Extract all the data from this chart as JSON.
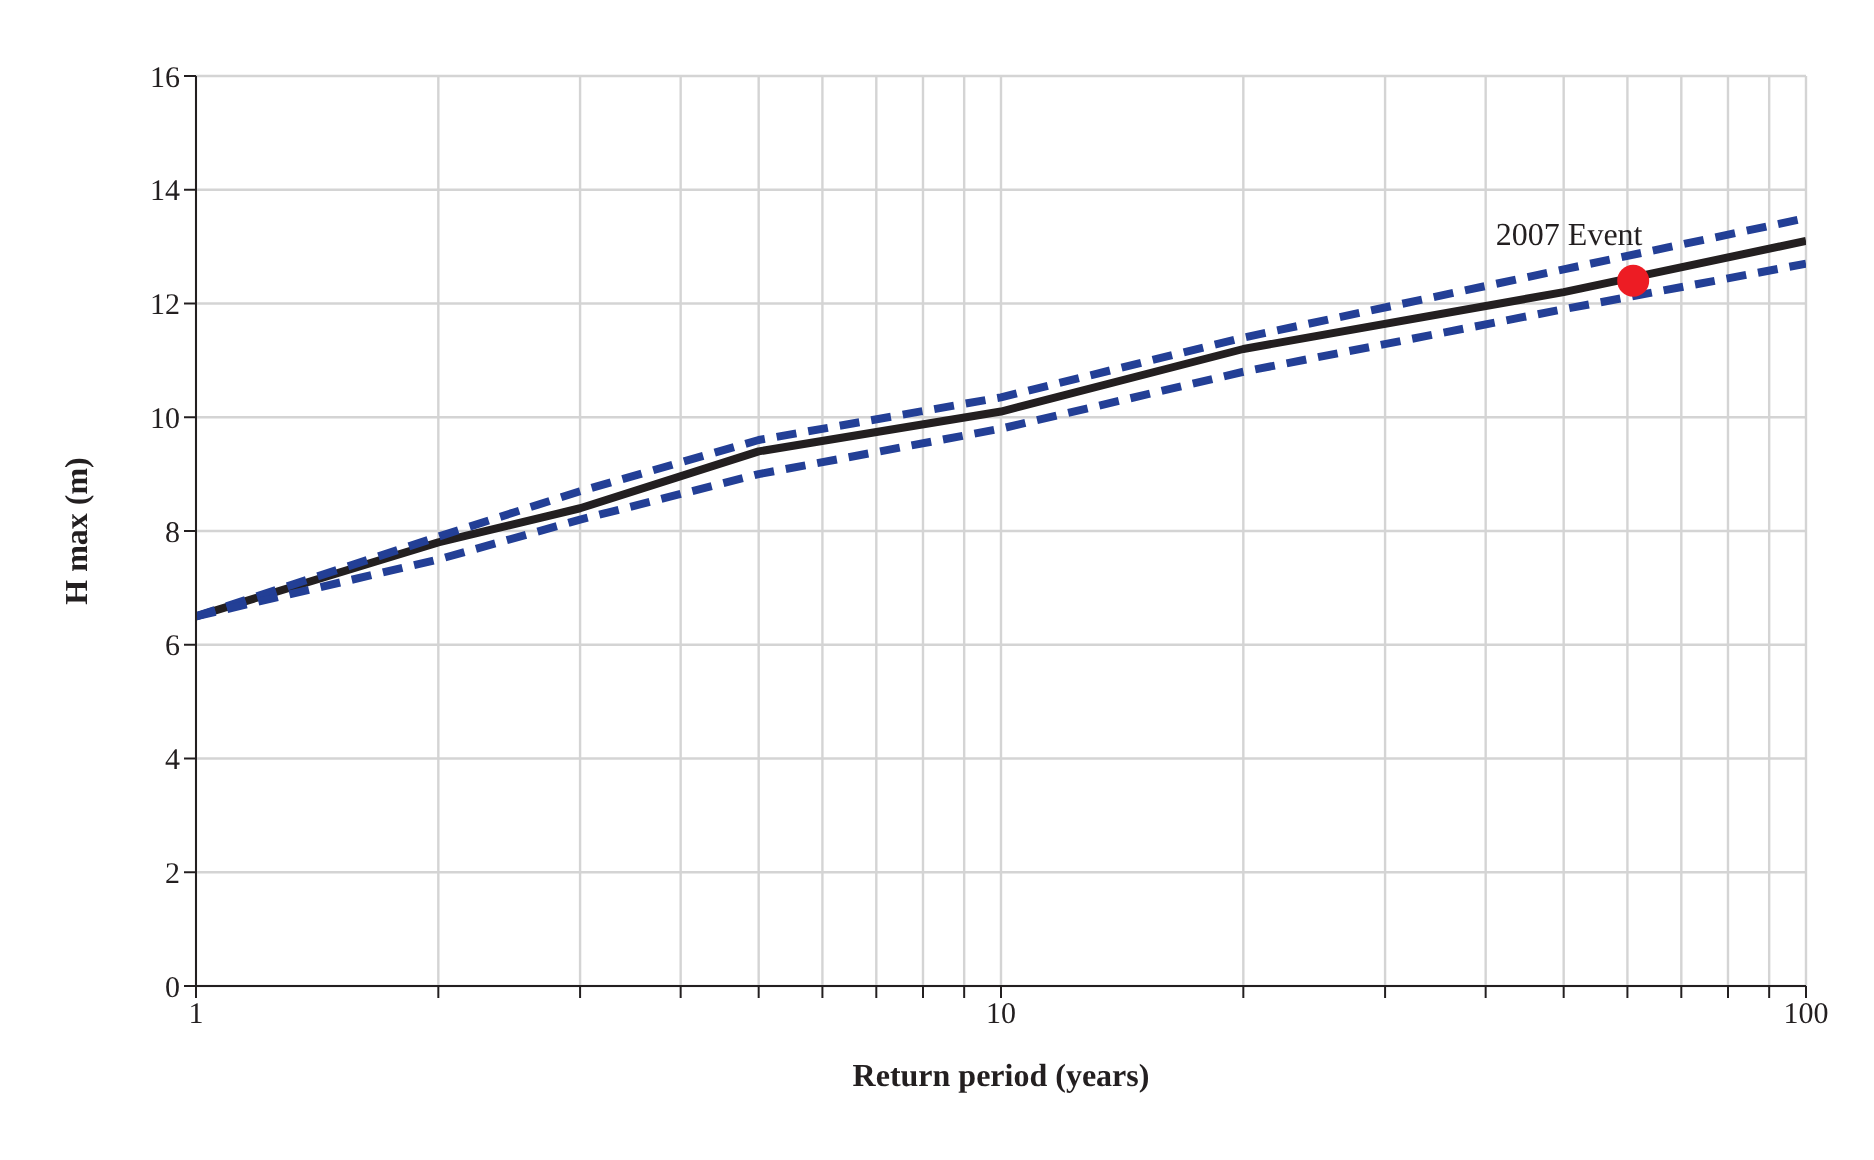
{
  "chart_data": {
    "type": "line",
    "xlabel": "Return period (years)",
    "ylabel": "H max (m)",
    "log": "x",
    "grid": true,
    "line_style": "solid",
    "marker": "none",
    "xlim": [
      1,
      100
    ],
    "xticks": [
      1,
      {
        "value": 2,
        "label": null
      },
      {
        "value": 3,
        "label": null
      },
      {
        "value": 4,
        "label": null
      },
      {
        "value": 5,
        "label": null
      },
      {
        "value": 6,
        "label": null
      },
      {
        "value": 7,
        "label": null
      },
      {
        "value": 8,
        "label": null
      },
      {
        "value": 9,
        "label": null
      },
      10,
      {
        "value": 20,
        "label": null
      },
      {
        "value": 30,
        "label": null
      },
      {
        "value": 40,
        "label": null
      },
      {
        "value": 50,
        "label": null
      },
      {
        "value": 60,
        "label": null
      },
      {
        "value": 70,
        "label": null
      },
      {
        "value": 80,
        "label": null
      },
      {
        "value": 90,
        "label": null
      },
      100
    ],
    "ylim": [
      0,
      16
    ],
    "yticks": [
      0,
      2,
      4,
      6,
      8,
      10,
      12,
      14,
      16
    ],
    "x": [
      1,
      2,
      3,
      5,
      10,
      20,
      50,
      100
    ],
    "series": [
      {
        "color": "#231f20",
        "values": [
          6.5,
          7.8,
          8.4,
          9.4,
          10.1,
          11.2,
          12.2,
          13.1
        ]
      },
      {
        "color": "#233f96",
        "line_style": "dashed",
        "values": [
          6.5,
          7.9,
          8.7,
          9.6,
          10.35,
          11.4,
          12.6,
          13.5
        ]
      },
      {
        "color": "#233f96",
        "line_style": "dashed",
        "values": [
          6.5,
          7.5,
          8.2,
          9.0,
          9.8,
          10.8,
          11.9,
          12.7
        ]
      },
      {
        "type": "scatter",
        "color": "#ed1c24",
        "marker": "circle",
        "x": [
          61
        ],
        "values": [
          12.4
        ]
      }
    ],
    "annotations": [
      {
        "text": "2007 Event",
        "x": 61,
        "y": 12.4
      }
    ]
  }
}
